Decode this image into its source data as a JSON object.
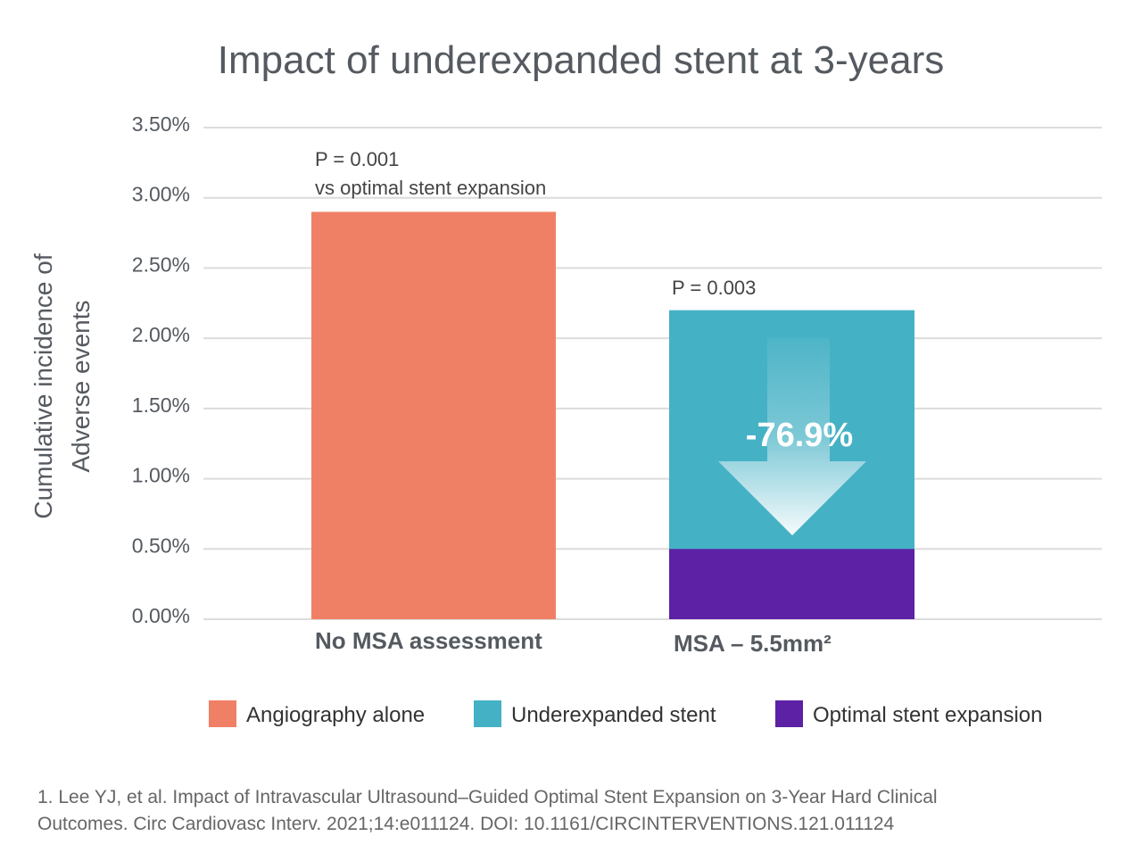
{
  "chart_data": {
    "type": "bar",
    "title": "Impact of underexpanded stent at 3-years",
    "ylabel": [
      "Cumulative incidence of",
      "Adverse events"
    ],
    "ylim": [
      0,
      3.5
    ],
    "yticks": [
      "0.00%",
      "0.50%",
      "1.00%",
      "1.50%",
      "2.00%",
      "2.50%",
      "3.00%",
      "3.50%"
    ],
    "grid": true,
    "legend_placement": "bottom",
    "categories": [
      "No MSA assessment",
      "MSA – 5.5mm²"
    ],
    "series": [
      {
        "name": "Angiography alone",
        "color": "#f08065",
        "values": [
          2.9,
          null
        ]
      },
      {
        "name": "Underexpanded stent",
        "color": "#45b1c5",
        "values": [
          null,
          2.2
        ]
      },
      {
        "name": "Optimal stent expansion",
        "color": "#5c21a5",
        "values": [
          null,
          0.5
        ]
      }
    ],
    "annotations": {
      "p1_line1": "P = 0.001",
      "p1_line2": "vs optimal stent expansion",
      "p2": "P = 0.003",
      "reduction": "-76.9%"
    },
    "citation": [
      "1. Lee YJ, et al. Impact of Intravascular Ultrasound–Guided Optimal Stent Expansion on 3-Year Hard Clinical",
      "Outcomes. Circ Cardiovasc Interv. 2021;14:e011124.  DOI: 10.1161/CIRCINTERVENTIONS.121.011124"
    ]
  }
}
